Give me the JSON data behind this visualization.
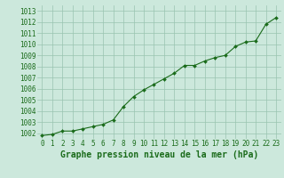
{
  "x": [
    0,
    1,
    2,
    3,
    4,
    5,
    6,
    7,
    8,
    9,
    10,
    11,
    12,
    13,
    14,
    15,
    16,
    17,
    18,
    19,
    20,
    21,
    22,
    23
  ],
  "y": [
    1001.8,
    1001.9,
    1002.2,
    1002.2,
    1002.4,
    1002.6,
    1002.8,
    1003.2,
    1004.4,
    1005.3,
    1005.9,
    1006.4,
    1006.9,
    1007.4,
    1008.1,
    1008.1,
    1008.5,
    1008.8,
    1009.0,
    1009.8,
    1010.2,
    1010.3,
    1011.8,
    1012.4
  ],
  "ylim": [
    1001.5,
    1013.5
  ],
  "yticks": [
    1002,
    1003,
    1004,
    1005,
    1006,
    1007,
    1008,
    1009,
    1010,
    1011,
    1012,
    1013
  ],
  "xticks": [
    0,
    1,
    2,
    3,
    4,
    5,
    6,
    7,
    8,
    9,
    10,
    11,
    12,
    13,
    14,
    15,
    16,
    17,
    18,
    19,
    20,
    21,
    22,
    23
  ],
  "xlabel": "Graphe pression niveau de la mer (hPa)",
  "line_color": "#1a6b1a",
  "marker": "D",
  "marker_size": 2.0,
  "bg_color": "#cce8dc",
  "grid_color": "#99c4b0",
  "tick_fontsize": 5.5,
  "xlabel_fontsize": 7.0,
  "xlabel_color": "#1a6b1a"
}
